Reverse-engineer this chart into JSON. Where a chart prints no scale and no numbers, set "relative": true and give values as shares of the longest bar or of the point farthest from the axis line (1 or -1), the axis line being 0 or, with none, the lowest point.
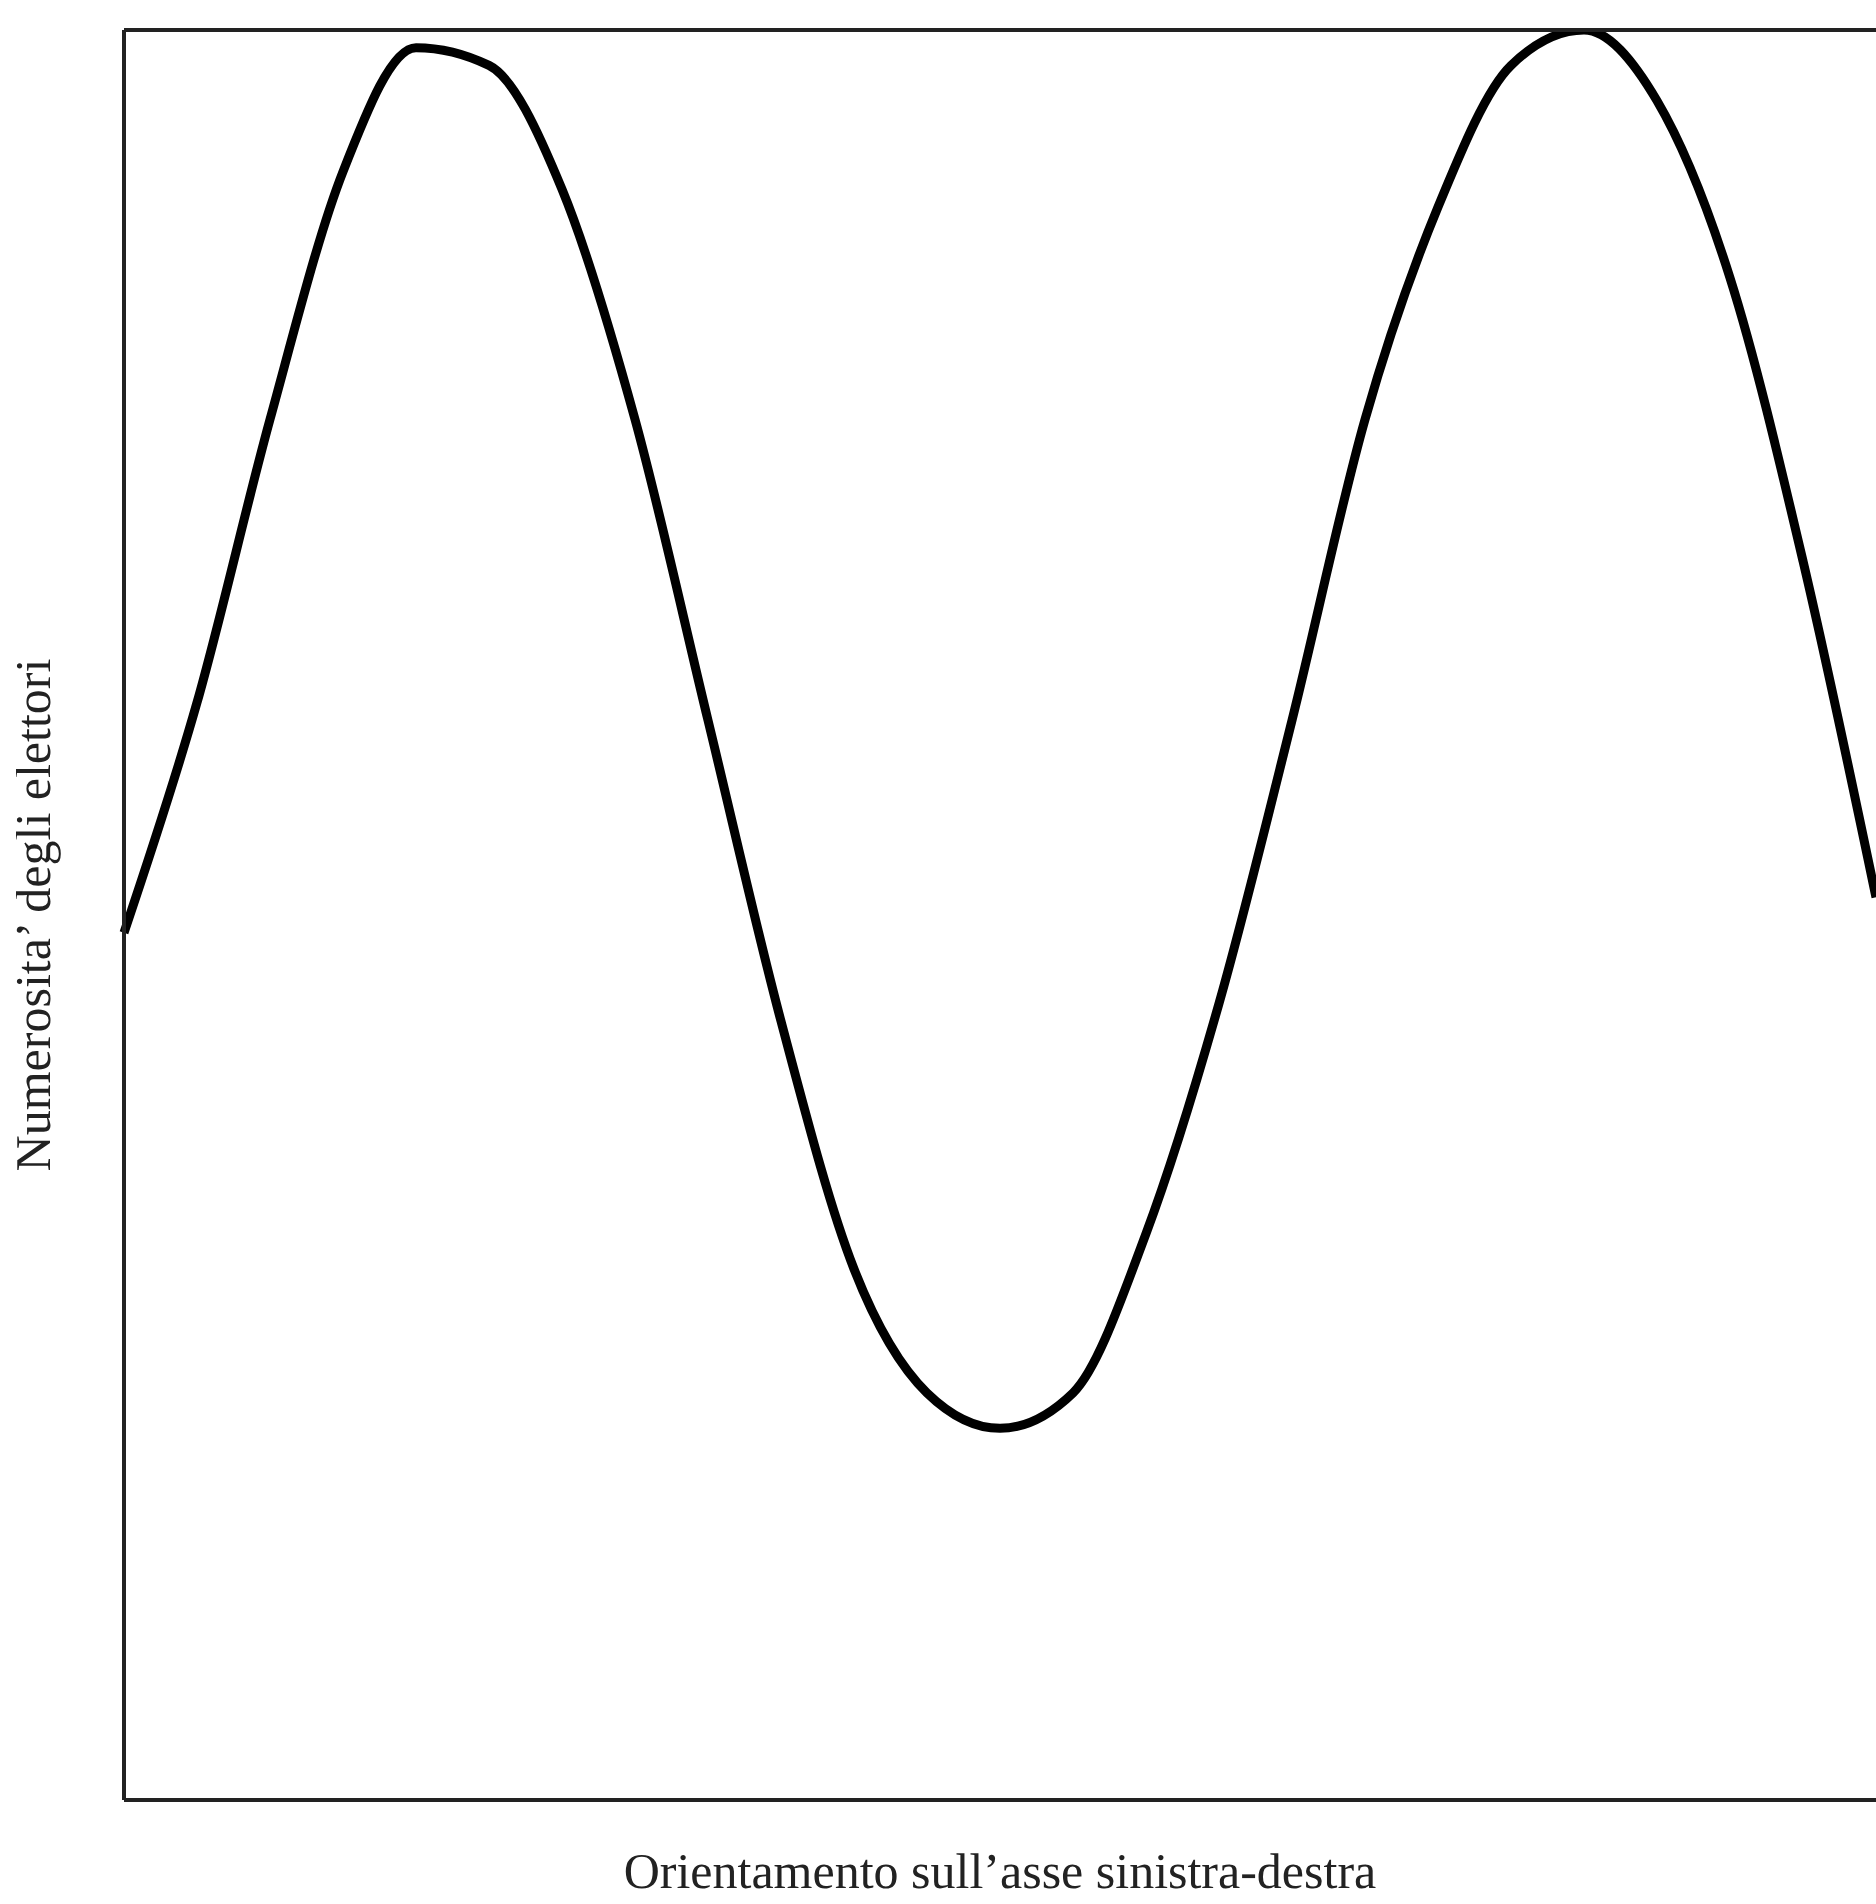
{
  "chart_data": {
    "type": "line",
    "relative": true,
    "xlabel": "Orientamento sull’asse sinistra-destra",
    "ylabel": "Numerosita’ degli elettori",
    "categories": [
      null,
      null,
      null,
      null,
      null,
      null,
      null,
      null,
      null,
      null,
      null,
      null,
      null,
      null,
      null,
      null,
      null,
      null,
      null,
      null,
      null,
      null,
      null,
      null,
      null
    ],
    "series": [
      {
        "color": "#000000",
        "values": [
          0.49,
          0.62,
          0.78,
          0.92,
          0.99,
          0.98,
          0.91,
          0.78,
          0.61,
          0.44,
          0.3,
          0.23,
          0.21,
          0.23,
          0.32,
          0.45,
          0.61,
          0.78,
          0.9,
          0.98,
          1,
          0.96,
          0.86,
          0.7,
          0.51
        ]
      }
    ],
    "marker": "none",
    "line_style": "solid"
  }
}
